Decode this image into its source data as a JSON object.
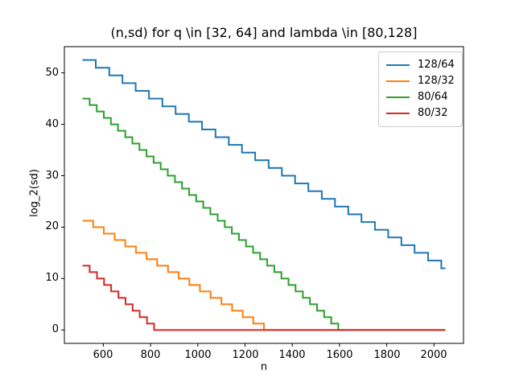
{
  "chart_data": {
    "type": "line",
    "style": "step-post",
    "title": "(n,sd) for q \\in [32, 64] and lambda \\in [80,128]",
    "xlabel": "n",
    "ylabel": "log_2(sd)",
    "xlim": [
      435,
      2125
    ],
    "ylim": [
      -2.6,
      55.1
    ],
    "xticks": [
      600,
      800,
      1000,
      1200,
      1400,
      1600,
      1800,
      2000
    ],
    "yticks": [
      0,
      10,
      20,
      30,
      40,
      50
    ],
    "grid": false,
    "legend_position": "upper right",
    "axes_color": "#000000",
    "background_color": "#ffffff",
    "series": [
      {
        "name": "128/64",
        "color": "#1f77b4",
        "points": [
          [
            512,
            52.5
          ],
          [
            568,
            51
          ],
          [
            625,
            49.5
          ],
          [
            681,
            48
          ],
          [
            737,
            46.5
          ],
          [
            793,
            45
          ],
          [
            850,
            43.5
          ],
          [
            906,
            42
          ],
          [
            962,
            40.5
          ],
          [
            1018,
            39
          ],
          [
            1075,
            37.5
          ],
          [
            1131,
            36
          ],
          [
            1187,
            34.5
          ],
          [
            1243,
            33
          ],
          [
            1300,
            31.5
          ],
          [
            1356,
            30
          ],
          [
            1412,
            28.5
          ],
          [
            1468,
            27
          ],
          [
            1525,
            25.5
          ],
          [
            1581,
            24
          ],
          [
            1637,
            22.5
          ],
          [
            1693,
            21
          ],
          [
            1750,
            19.5
          ],
          [
            1806,
            18
          ],
          [
            1862,
            16.5
          ],
          [
            1918,
            15
          ],
          [
            1975,
            13.5
          ],
          [
            2031,
            12
          ],
          [
            2048,
            12
          ]
        ]
      },
      {
        "name": "128/32",
        "color": "#ff7f0e",
        "points": [
          [
            512,
            21.25
          ],
          [
            557,
            20
          ],
          [
            602,
            18.75
          ],
          [
            648,
            17.5
          ],
          [
            693,
            16.25
          ],
          [
            738,
            15
          ],
          [
            783,
            13.75
          ],
          [
            828,
            12.5
          ],
          [
            874,
            11.25
          ],
          [
            919,
            10
          ],
          [
            964,
            8.75
          ],
          [
            1009,
            7.5
          ],
          [
            1054,
            6.25
          ],
          [
            1100,
            5
          ],
          [
            1145,
            3.75
          ],
          [
            1190,
            2.5
          ],
          [
            1235,
            1.25
          ],
          [
            1280,
            0
          ],
          [
            2048,
            0
          ]
        ]
      },
      {
        "name": "80/64",
        "color": "#2ca02c",
        "points": [
          [
            512,
            45
          ],
          [
            542,
            43.75
          ],
          [
            572,
            42.5
          ],
          [
            602,
            41.25
          ],
          [
            632,
            40
          ],
          [
            662,
            38.75
          ],
          [
            693,
            37.5
          ],
          [
            723,
            36.25
          ],
          [
            753,
            35
          ],
          [
            783,
            33.75
          ],
          [
            813,
            32.5
          ],
          [
            843,
            31.25
          ],
          [
            873,
            30
          ],
          [
            903,
            28.75
          ],
          [
            933,
            27.5
          ],
          [
            963,
            26.25
          ],
          [
            993,
            25
          ],
          [
            1023,
            23.75
          ],
          [
            1053,
            22.5
          ],
          [
            1084,
            21.25
          ],
          [
            1114,
            20
          ],
          [
            1144,
            18.75
          ],
          [
            1174,
            17.5
          ],
          [
            1204,
            16.25
          ],
          [
            1234,
            15
          ],
          [
            1264,
            13.75
          ],
          [
            1294,
            12.5
          ],
          [
            1324,
            11.25
          ],
          [
            1354,
            10
          ],
          [
            1384,
            8.75
          ],
          [
            1414,
            7.5
          ],
          [
            1445,
            6.25
          ],
          [
            1475,
            5
          ],
          [
            1505,
            3.75
          ],
          [
            1535,
            2.5
          ],
          [
            1565,
            1.25
          ],
          [
            1595,
            0
          ],
          [
            2048,
            0
          ]
        ]
      },
      {
        "name": "80/32",
        "color": "#d62728",
        "points": [
          [
            512,
            12.5
          ],
          [
            542,
            11.25
          ],
          [
            573,
            10
          ],
          [
            603,
            8.75
          ],
          [
            633,
            7.5
          ],
          [
            664,
            6.25
          ],
          [
            694,
            5
          ],
          [
            724,
            3.75
          ],
          [
            754,
            2.5
          ],
          [
            785,
            1.25
          ],
          [
            815,
            0
          ],
          [
            2048,
            0
          ]
        ]
      }
    ]
  }
}
